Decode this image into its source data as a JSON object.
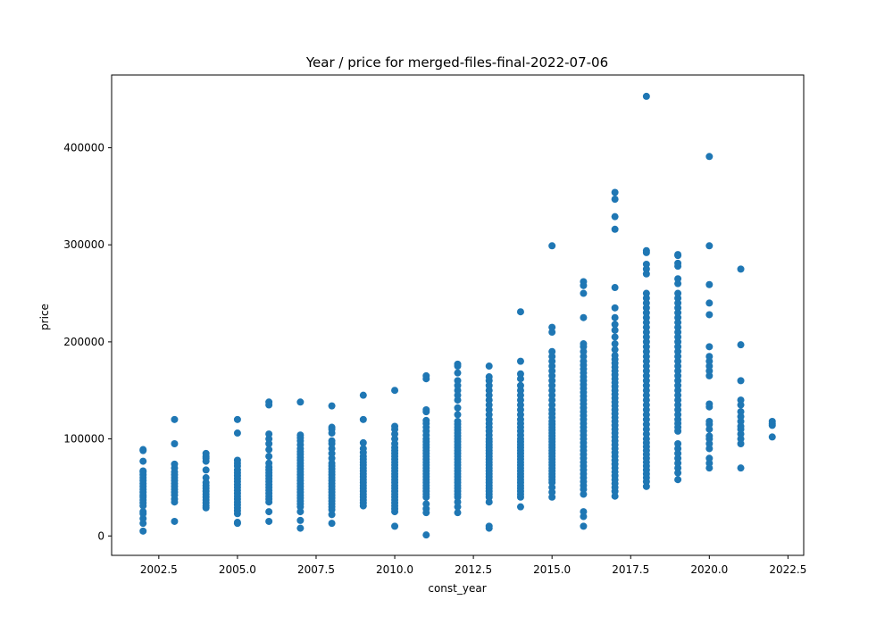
{
  "chart_data": {
    "type": "scatter",
    "title": "Year / price for merged-files-final-2022-07-06",
    "xlabel": "const_year",
    "ylabel": "price",
    "xlim": [
      2001.0,
      2023.0
    ],
    "ylim": [
      -20000,
      475000
    ],
    "xticks": [
      2002.5,
      2005.0,
      2007.5,
      2010.0,
      2012.5,
      2015.0,
      2017.5,
      2020.0,
      2022.5
    ],
    "xtick_labels": [
      "2002.5",
      "2005.0",
      "2007.5",
      "2010.0",
      "2012.5",
      "2015.0",
      "2017.5",
      "2020.0",
      "2022.5"
    ],
    "yticks": [
      0,
      100000,
      200000,
      300000,
      400000
    ],
    "ytick_labels": [
      "0",
      "100000",
      "200000",
      "300000",
      "400000"
    ],
    "grid": false,
    "color": "#1f77b4",
    "points_by_year": [
      {
        "x": 2002,
        "y": [
          5000,
          13000,
          18000,
          23000,
          25000,
          31000,
          34000,
          37000,
          40000,
          42000,
          45000,
          48000,
          51000,
          54000,
          57000,
          60000,
          63000,
          66000,
          67000,
          77000,
          88000,
          89000
        ]
      },
      {
        "x": 2003,
        "y": [
          15000,
          35000,
          38000,
          42000,
          45000,
          48000,
          51000,
          54000,
          57000,
          60000,
          63000,
          66000,
          70000,
          74000,
          95000,
          120000
        ]
      },
      {
        "x": 2004,
        "y": [
          29000,
          31000,
          34000,
          37000,
          40000,
          43000,
          46000,
          49000,
          52000,
          55000,
          60000,
          68000,
          77000,
          80000,
          82000,
          85000
        ]
      },
      {
        "x": 2005,
        "y": [
          13000,
          14000,
          23000,
          26000,
          29000,
          32000,
          35000,
          38000,
          41000,
          44000,
          47000,
          50000,
          53000,
          56000,
          59000,
          62000,
          65000,
          68000,
          72000,
          75000,
          78000,
          106000,
          120000
        ]
      },
      {
        "x": 2006,
        "y": [
          15000,
          25000,
          35000,
          38000,
          41000,
          44000,
          47000,
          50000,
          53000,
          56000,
          59000,
          62000,
          65000,
          68000,
          71000,
          75000,
          82000,
          89000,
          95000,
          100000,
          105000,
          135000,
          138000
        ]
      },
      {
        "x": 2007,
        "y": [
          8000,
          16000,
          25000,
          30000,
          33000,
          36000,
          39000,
          42000,
          45000,
          48000,
          51000,
          54000,
          57000,
          60000,
          63000,
          66000,
          69000,
          72000,
          75000,
          78000,
          81000,
          84000,
          87000,
          90000,
          94000,
          98000,
          101000,
          104000,
          138000
        ]
      },
      {
        "x": 2008,
        "y": [
          13000,
          22000,
          27000,
          30000,
          33000,
          36000,
          39000,
          42000,
          45000,
          48000,
          51000,
          54000,
          57000,
          60000,
          63000,
          66000,
          69000,
          72000,
          75000,
          80000,
          85000,
          90000,
          95000,
          98000,
          106000,
          110000,
          112000,
          134000
        ]
      },
      {
        "x": 2009,
        "y": [
          31000,
          34000,
          37000,
          40000,
          43000,
          46000,
          49000,
          52000,
          55000,
          58000,
          61000,
          64000,
          67000,
          70000,
          73000,
          76000,
          79000,
          82000,
          86000,
          90000,
          96000,
          120000,
          145000
        ]
      },
      {
        "x": 2010,
        "y": [
          10000,
          25000,
          28000,
          31000,
          34000,
          37000,
          40000,
          43000,
          46000,
          49000,
          52000,
          55000,
          58000,
          61000,
          64000,
          67000,
          70000,
          73000,
          76000,
          79000,
          82000,
          85000,
          88000,
          91000,
          95000,
          100000,
          105000,
          110000,
          113000,
          150000
        ]
      },
      {
        "x": 2011,
        "y": [
          1000,
          24000,
          28000,
          33000,
          40000,
          43000,
          46000,
          49000,
          52000,
          55000,
          58000,
          61000,
          64000,
          67000,
          70000,
          73000,
          76000,
          79000,
          82000,
          85000,
          88000,
          91000,
          94000,
          97000,
          100000,
          104000,
          108000,
          112000,
          116000,
          119000,
          128000,
          130000,
          162000,
          165000
        ]
      },
      {
        "x": 2012,
        "y": [
          24000,
          30000,
          35000,
          40000,
          43000,
          46000,
          49000,
          52000,
          55000,
          58000,
          61000,
          64000,
          67000,
          70000,
          73000,
          76000,
          79000,
          82000,
          85000,
          88000,
          91000,
          94000,
          97000,
          100000,
          103000,
          106000,
          109000,
          112000,
          115000,
          118000,
          125000,
          132000,
          140000,
          145000,
          150000,
          155000,
          160000,
          168000,
          175000,
          177000
        ]
      },
      {
        "x": 2013,
        "y": [
          8000,
          10000,
          35000,
          40000,
          43000,
          46000,
          49000,
          52000,
          55000,
          58000,
          61000,
          64000,
          67000,
          70000,
          73000,
          76000,
          79000,
          82000,
          85000,
          88000,
          91000,
          94000,
          97000,
          100000,
          104000,
          108000,
          112000,
          116000,
          120000,
          125000,
          130000,
          135000,
          140000,
          145000,
          150000,
          155000,
          160000,
          164000,
          175000
        ]
      },
      {
        "x": 2014,
        "y": [
          30000,
          40000,
          43000,
          46000,
          49000,
          52000,
          55000,
          58000,
          61000,
          64000,
          67000,
          70000,
          73000,
          76000,
          79000,
          82000,
          85000,
          88000,
          91000,
          94000,
          97000,
          100000,
          104000,
          108000,
          112000,
          116000,
          120000,
          125000,
          130000,
          135000,
          140000,
          145000,
          150000,
          155000,
          162000,
          167000,
          180000,
          231000
        ]
      },
      {
        "x": 2015,
        "y": [
          40000,
          45000,
          50000,
          55000,
          58000,
          61000,
          64000,
          67000,
          70000,
          73000,
          76000,
          79000,
          82000,
          85000,
          88000,
          91000,
          94000,
          97000,
          100000,
          103000,
          106000,
          109000,
          112000,
          115000,
          118000,
          122000,
          126000,
          130000,
          135000,
          140000,
          145000,
          150000,
          155000,
          160000,
          165000,
          170000,
          175000,
          180000,
          185000,
          190000,
          210000,
          215000,
          299000
        ]
      },
      {
        "x": 2016,
        "y": [
          10000,
          20000,
          25000,
          43000,
          48000,
          52000,
          56000,
          60000,
          64000,
          68000,
          72000,
          76000,
          80000,
          84000,
          88000,
          92000,
          96000,
          100000,
          104000,
          108000,
          112000,
          116000,
          120000,
          124000,
          128000,
          132000,
          136000,
          140000,
          144000,
          148000,
          152000,
          156000,
          160000,
          164000,
          168000,
          172000,
          176000,
          180000,
          185000,
          190000,
          195000,
          198000,
          225000,
          250000,
          258000,
          262000
        ]
      },
      {
        "x": 2017,
        "y": [
          41000,
          46000,
          50000,
          54000,
          58000,
          62000,
          66000,
          70000,
          74000,
          78000,
          82000,
          86000,
          90000,
          94000,
          98000,
          102000,
          106000,
          110000,
          114000,
          118000,
          122000,
          126000,
          130000,
          134000,
          138000,
          142000,
          146000,
          150000,
          154000,
          158000,
          162000,
          166000,
          170000,
          174000,
          178000,
          182000,
          186000,
          192000,
          198000,
          205000,
          212000,
          218000,
          225000,
          235000,
          256000,
          316000,
          329000,
          347000,
          354000
        ]
      },
      {
        "x": 2018,
        "y": [
          51000,
          56000,
          60000,
          64000,
          68000,
          72000,
          76000,
          80000,
          84000,
          88000,
          92000,
          96000,
          100000,
          105000,
          110000,
          115000,
          120000,
          125000,
          130000,
          135000,
          140000,
          145000,
          150000,
          155000,
          160000,
          165000,
          170000,
          175000,
          180000,
          185000,
          190000,
          195000,
          200000,
          205000,
          210000,
          215000,
          220000,
          225000,
          230000,
          235000,
          240000,
          245000,
          250000,
          270000,
          275000,
          280000,
          292000,
          294000,
          453000
        ]
      },
      {
        "x": 2019,
        "y": [
          58000,
          65000,
          70000,
          75000,
          80000,
          85000,
          90000,
          95000,
          108000,
          112000,
          116000,
          120000,
          125000,
          130000,
          135000,
          140000,
          145000,
          150000,
          155000,
          160000,
          165000,
          170000,
          175000,
          180000,
          185000,
          190000,
          195000,
          200000,
          205000,
          210000,
          215000,
          220000,
          225000,
          230000,
          235000,
          240000,
          245000,
          250000,
          260000,
          265000,
          278000,
          281000,
          289000,
          290000
        ]
      },
      {
        "x": 2020,
        "y": [
          70000,
          75000,
          80000,
          90000,
          95000,
          100000,
          103000,
          110000,
          115000,
          118000,
          133000,
          136000,
          165000,
          170000,
          175000,
          180000,
          185000,
          195000,
          228000,
          240000,
          259000,
          299000,
          391000
        ]
      },
      {
        "x": 2021,
        "y": [
          70000,
          95000,
          100000,
          105000,
          110000,
          113000,
          118000,
          123000,
          128000,
          135000,
          140000,
          160000,
          197000,
          275000
        ]
      },
      {
        "x": 2022,
        "y": [
          102000,
          114000,
          116000,
          118000
        ]
      }
    ]
  }
}
